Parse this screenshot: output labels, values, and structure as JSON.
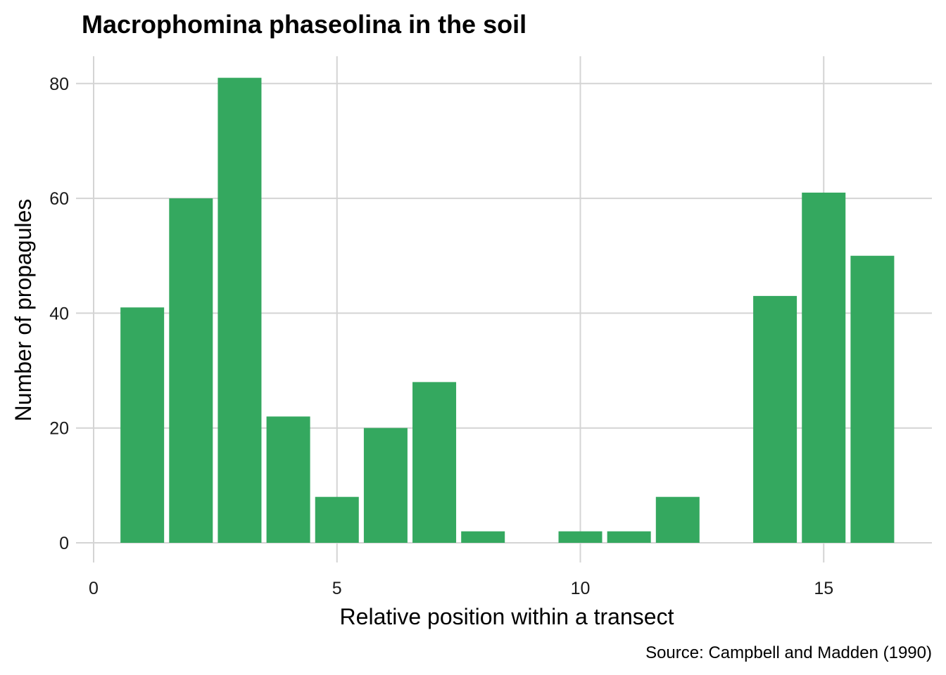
{
  "chart_data": {
    "type": "bar",
    "title": "Macrophomina phaseolina in the soil",
    "xlabel": "Relative position within a transect",
    "ylabel": "Number of propagules",
    "caption": "Source: Campbell and Madden (1990)",
    "x": [
      1,
      2,
      3,
      4,
      5,
      6,
      7,
      8,
      9,
      10,
      11,
      12,
      13,
      14,
      15,
      16
    ],
    "values": [
      41,
      60,
      81,
      22,
      8,
      20,
      28,
      2,
      0,
      2,
      2,
      8,
      0,
      43,
      61,
      50
    ],
    "xlim": [
      0,
      17.2
    ],
    "ylim": [
      0,
      81
    ],
    "xticks": [
      0,
      5,
      10,
      15
    ],
    "yticks": [
      0,
      20,
      40,
      60,
      80
    ],
    "grid": true,
    "bar_color": "#34a85f",
    "grid_color": "#d4d4d4"
  }
}
